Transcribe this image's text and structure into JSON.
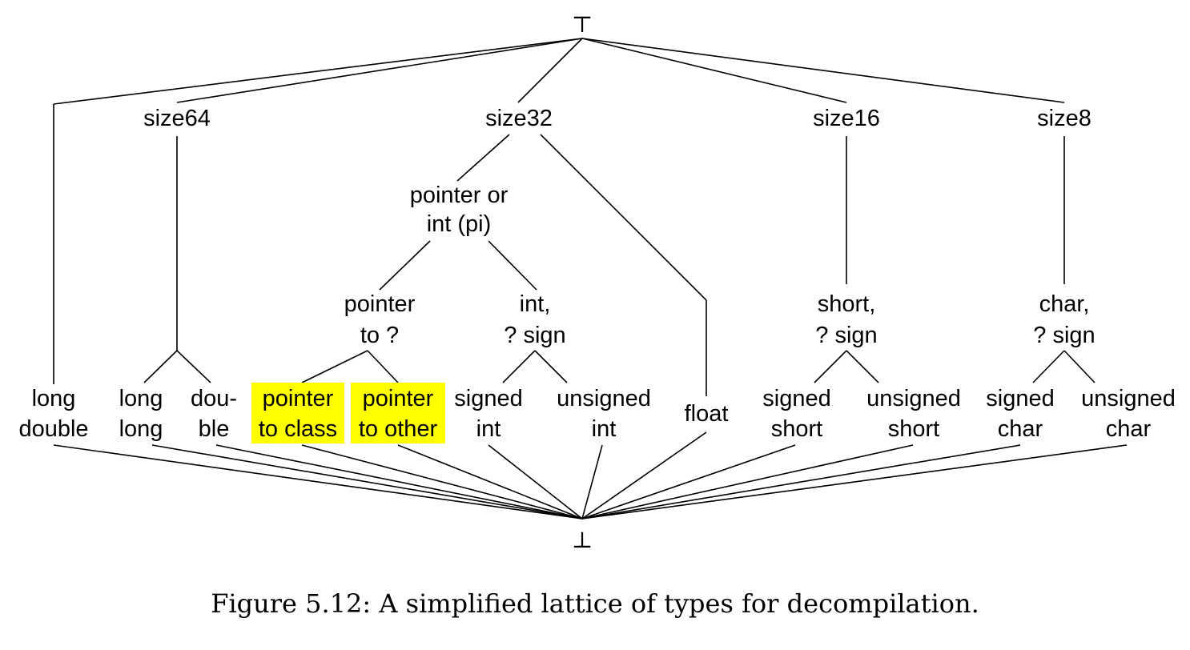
{
  "diagram": {
    "top_symbol": "⊤",
    "bottom_symbol": "⊥",
    "nodes": {
      "long_double": [
        "long",
        "double"
      ],
      "size64": [
        "size64"
      ],
      "size32": [
        "size32"
      ],
      "size16": [
        "size16"
      ],
      "size8": [
        "size8"
      ],
      "pi": [
        "pointer or",
        "int (pi)"
      ],
      "pointer_to_unknown": [
        "pointer",
        "to ?"
      ],
      "int_unknown_sign": [
        "int,",
        "? sign"
      ],
      "short_unknown_sign": [
        "short,",
        "? sign"
      ],
      "char_unknown_sign": [
        "char,",
        "? sign"
      ],
      "long_long": [
        "long",
        "long"
      ],
      "double": [
        "dou-",
        "ble"
      ],
      "pointer_to_class": [
        "pointer",
        "to class"
      ],
      "pointer_to_other": [
        "pointer",
        "to other"
      ],
      "signed_int": [
        "signed",
        "int"
      ],
      "unsigned_int": [
        "unsigned",
        "int"
      ],
      "float": [
        "float"
      ],
      "signed_short": [
        "signed",
        "short"
      ],
      "unsigned_short": [
        "unsigned",
        "short"
      ],
      "signed_char": [
        "signed",
        "char"
      ],
      "unsigned_char": [
        "unsigned",
        "char"
      ]
    },
    "highlight_color": "#ffff00",
    "highlighted": [
      "pointer_to_class",
      "pointer_to_other"
    ]
  },
  "caption": "Figure 5.12: A simplified lattice of types for decompilation."
}
